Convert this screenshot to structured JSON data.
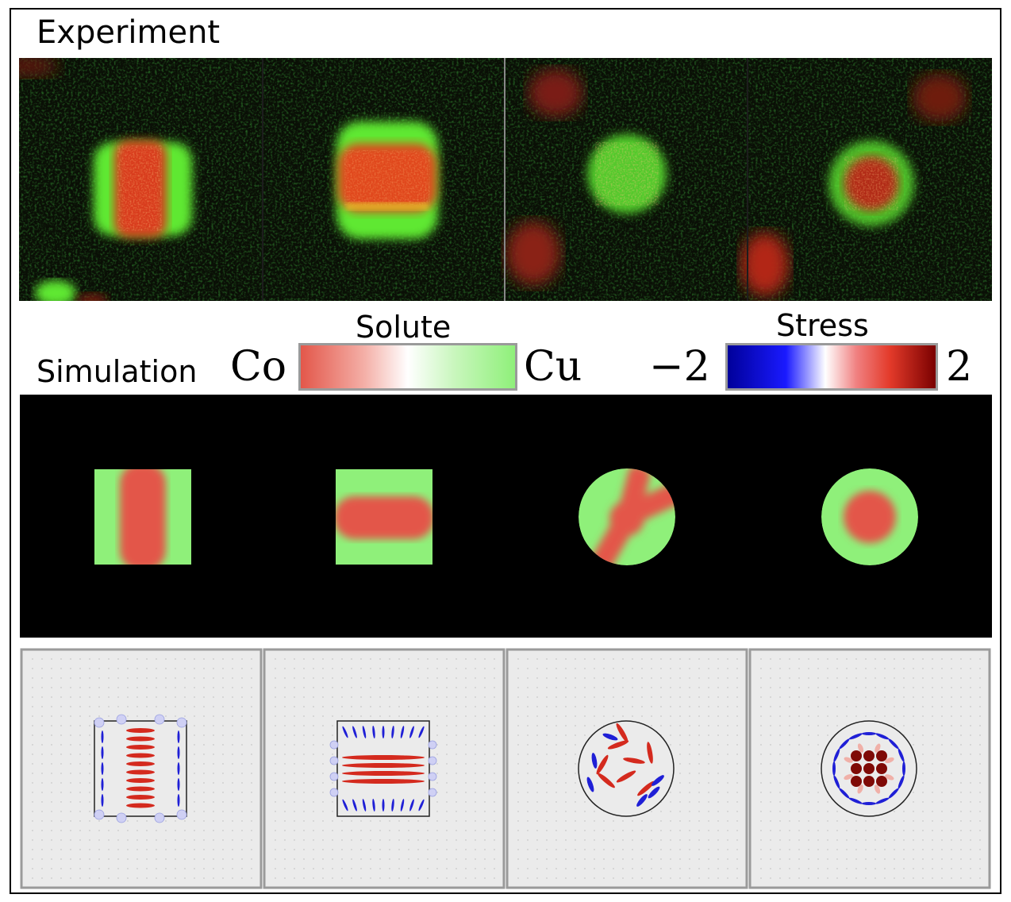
{
  "experiment": {
    "title": "Experiment"
  },
  "simulation": {
    "title": "Simulation"
  },
  "solute_colorbar": {
    "title": "Solute",
    "min_label": "Co",
    "max_label": "Cu",
    "color_min": "#e3574a",
    "color_mid": "#ffffff",
    "color_max": "#8ff07a"
  },
  "stress_colorbar": {
    "title": "Stress",
    "min_label": "−2",
    "max_label": "2",
    "color_min": "#00009a",
    "color_mid": "#ffffff",
    "color_max": "#7a0000"
  },
  "colors": {
    "co_phase": "#e3574a",
    "cu_phase": "#8ff07a",
    "exp_red": "#d83a1c",
    "exp_green": "#5ee832",
    "stress_panel_bg": "#ebebeb"
  },
  "panels": [
    {
      "shape": "square",
      "core": "vertical-band"
    },
    {
      "shape": "square",
      "core": "horizontal-band"
    },
    {
      "shape": "circle",
      "core": "tri-junction"
    },
    {
      "shape": "circle",
      "core": "core-shell"
    }
  ]
}
